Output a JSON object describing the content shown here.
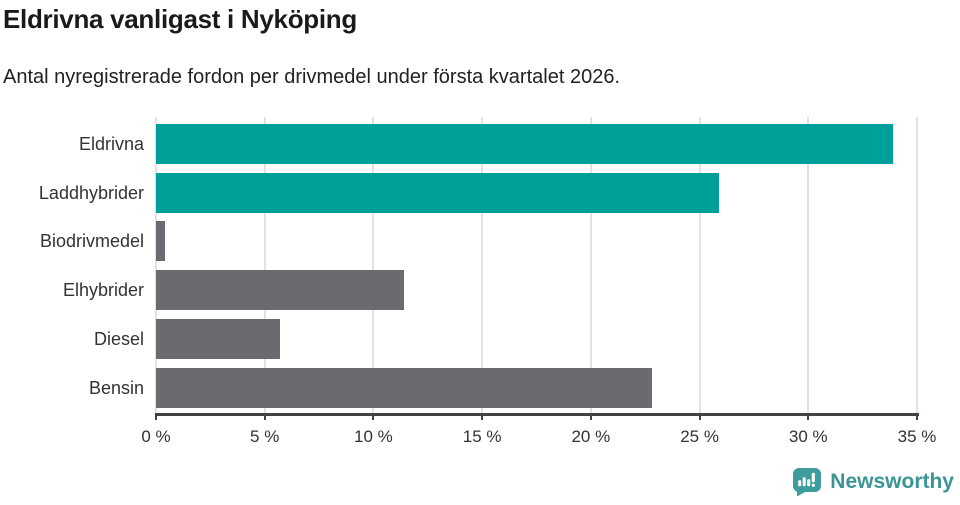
{
  "chart_data": {
    "type": "bar",
    "orientation": "horizontal",
    "title": "Eldrivna vanligast i Nyköping",
    "subtitle": "Antal nyregistrerade fordon per drivmedel under första kvartalet 2026.",
    "categories": [
      "Eldrivna",
      "Laddhybrider",
      "Biodrivmedel",
      "Elhybrider",
      "Diesel",
      "Bensin"
    ],
    "values": [
      33.9,
      25.9,
      0.4,
      11.4,
      5.7,
      22.8
    ],
    "unit": "%",
    "bar_colors": [
      "#00A09A",
      "#00A09A",
      "#6A6A70",
      "#6A6A70",
      "#6A6A70",
      "#6A6A70"
    ],
    "xlim": [
      0,
      35
    ],
    "x_tick_values": [
      0,
      5,
      10,
      15,
      20,
      25,
      30,
      35
    ],
    "x_tick_labels": [
      "0 %",
      "5 %",
      "10 %",
      "15 %",
      "20 %",
      "25 %",
      "30 %",
      "35 %"
    ],
    "grid": "vertical",
    "legend": "none",
    "colors": {
      "highlight": "#00A09A",
      "neutral": "#6A6A70",
      "gridline": "#E2E2E2",
      "axis": "#414146",
      "text": "#333333",
      "title": "#1A1A1A"
    }
  },
  "footer": {
    "brand": "Newsworthy",
    "brand_color": "#3A9596",
    "icon": "newsworthy-bar-chart-bubble-icon"
  }
}
